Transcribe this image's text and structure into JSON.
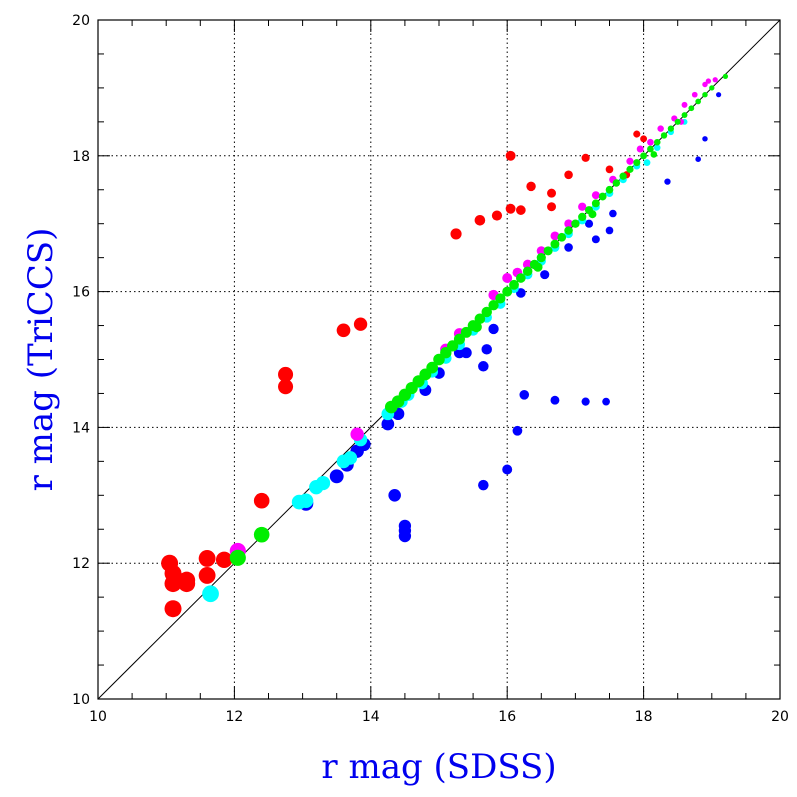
{
  "chart_data": {
    "type": "scatter",
    "title": "",
    "xlabel": "r mag (SDSS)",
    "ylabel": "r mag (TriCCS)",
    "xlim": [
      10,
      20
    ],
    "ylim": [
      10,
      20
    ],
    "x_ticks": [
      "10",
      "12",
      "14",
      "16",
      "18",
      "20"
    ],
    "y_ticks": [
      "10",
      "12",
      "14",
      "16",
      "18",
      "20"
    ],
    "grid": "dotted at major ticks",
    "reference_line": "y = x",
    "axis_title_color": "#0000ee",
    "series": [
      {
        "color": "#ff0000",
        "points": [
          [
            11.05,
            12.0
          ],
          [
            11.1,
            11.85
          ],
          [
            11.1,
            11.7
          ],
          [
            11.15,
            11.75
          ],
          [
            11.1,
            11.33
          ],
          [
            11.3,
            11.75
          ],
          [
            11.3,
            11.7
          ],
          [
            11.6,
            12.07
          ],
          [
            11.6,
            11.82
          ],
          [
            11.85,
            12.05
          ],
          [
            12.4,
            12.92
          ],
          [
            12.75,
            14.78
          ],
          [
            12.75,
            14.6
          ],
          [
            13.6,
            15.43
          ],
          [
            13.85,
            15.52
          ],
          [
            15.25,
            16.85
          ],
          [
            15.6,
            17.05
          ],
          [
            15.85,
            17.12
          ],
          [
            16.05,
            17.22
          ],
          [
            16.2,
            17.2
          ],
          [
            16.05,
            18.0
          ],
          [
            16.35,
            17.55
          ],
          [
            16.65,
            17.45
          ],
          [
            16.65,
            17.25
          ],
          [
            16.9,
            17.72
          ],
          [
            17.15,
            17.97
          ],
          [
            17.5,
            17.8
          ],
          [
            17.75,
            17.72
          ],
          [
            17.9,
            18.32
          ],
          [
            18.0,
            18.25
          ]
        ]
      },
      {
        "color": "#0000ff",
        "points": [
          [
            13.05,
            12.88
          ],
          [
            13.5,
            13.28
          ],
          [
            13.65,
            13.45
          ],
          [
            13.8,
            13.65
          ],
          [
            13.9,
            13.75
          ],
          [
            14.25,
            14.05
          ],
          [
            14.35,
            13.0
          ],
          [
            14.4,
            14.2
          ],
          [
            14.5,
            12.55
          ],
          [
            14.5,
            12.48
          ],
          [
            14.5,
            12.4
          ],
          [
            14.8,
            14.55
          ],
          [
            15.0,
            14.8
          ],
          [
            15.3,
            15.1
          ],
          [
            15.4,
            15.1
          ],
          [
            15.7,
            15.15
          ],
          [
            15.65,
            14.9
          ],
          [
            15.65,
            13.15
          ],
          [
            15.8,
            15.45
          ],
          [
            16.0,
            13.38
          ],
          [
            16.15,
            13.95
          ],
          [
            16.25,
            14.48
          ],
          [
            16.2,
            15.98
          ],
          [
            16.7,
            14.4
          ],
          [
            16.55,
            16.25
          ],
          [
            16.9,
            16.65
          ],
          [
            17.15,
            14.38
          ],
          [
            17.2,
            17.0
          ],
          [
            17.3,
            16.77
          ],
          [
            17.45,
            14.38
          ],
          [
            17.5,
            16.9
          ],
          [
            17.55,
            17.15
          ],
          [
            18.35,
            17.62
          ],
          [
            18.8,
            17.95
          ],
          [
            18.9,
            18.25
          ],
          [
            19.1,
            18.9
          ]
        ]
      },
      {
        "color": "#00ffff",
        "points": [
          [
            11.65,
            11.55
          ],
          [
            12.95,
            12.9
          ],
          [
            13.05,
            12.92
          ],
          [
            13.2,
            13.12
          ],
          [
            13.3,
            13.18
          ],
          [
            13.6,
            13.5
          ],
          [
            13.7,
            13.55
          ],
          [
            13.85,
            13.82
          ],
          [
            14.25,
            14.2
          ],
          [
            14.45,
            14.38
          ],
          [
            14.55,
            14.48
          ],
          [
            14.75,
            14.65
          ],
          [
            14.9,
            14.82
          ],
          [
            15.1,
            15.02
          ],
          [
            15.3,
            15.22
          ],
          [
            15.5,
            15.43
          ],
          [
            15.7,
            15.62
          ],
          [
            15.9,
            15.82
          ],
          [
            16.1,
            16.05
          ],
          [
            16.3,
            16.25
          ],
          [
            16.5,
            16.45
          ],
          [
            16.7,
            16.65
          ],
          [
            16.9,
            16.85
          ],
          [
            17.1,
            17.05
          ],
          [
            17.3,
            17.25
          ],
          [
            17.5,
            17.45
          ],
          [
            17.7,
            17.65
          ],
          [
            17.9,
            17.85
          ],
          [
            18.05,
            17.9
          ],
          [
            18.2,
            18.12
          ],
          [
            18.4,
            18.35
          ],
          [
            18.6,
            18.5
          ]
        ]
      },
      {
        "color": "#ff00ff",
        "points": [
          [
            12.05,
            12.18
          ],
          [
            13.8,
            13.9
          ],
          [
            15.1,
            15.15
          ],
          [
            15.3,
            15.38
          ],
          [
            15.8,
            15.95
          ],
          [
            16.0,
            16.2
          ],
          [
            16.15,
            16.28
          ],
          [
            16.3,
            16.4
          ],
          [
            16.5,
            16.6
          ],
          [
            16.7,
            16.82
          ],
          [
            16.9,
            17.0
          ],
          [
            17.1,
            17.25
          ],
          [
            17.3,
            17.42
          ],
          [
            17.55,
            17.65
          ],
          [
            17.8,
            17.92
          ],
          [
            17.95,
            18.1
          ],
          [
            18.1,
            18.2
          ],
          [
            18.25,
            18.4
          ],
          [
            18.45,
            18.55
          ],
          [
            18.6,
            18.75
          ],
          [
            18.75,
            18.9
          ],
          [
            18.9,
            19.05
          ],
          [
            18.95,
            19.1
          ],
          [
            19.05,
            19.12
          ],
          [
            18.55,
            18.5
          ]
        ]
      },
      {
        "color": "#00ee00",
        "points": [
          [
            12.05,
            12.08
          ],
          [
            12.4,
            12.42
          ],
          [
            14.3,
            14.3
          ],
          [
            14.4,
            14.38
          ],
          [
            14.5,
            14.48
          ],
          [
            14.6,
            14.58
          ],
          [
            14.7,
            14.68
          ],
          [
            14.8,
            14.78
          ],
          [
            14.9,
            14.88
          ],
          [
            15.0,
            15.0
          ],
          [
            15.1,
            15.1
          ],
          [
            15.2,
            15.2
          ],
          [
            15.3,
            15.3
          ],
          [
            15.4,
            15.4
          ],
          [
            15.5,
            15.5
          ],
          [
            15.6,
            15.6
          ],
          [
            15.7,
            15.7
          ],
          [
            15.8,
            15.8
          ],
          [
            15.9,
            15.9
          ],
          [
            16.0,
            16.0
          ],
          [
            16.1,
            16.1
          ],
          [
            16.2,
            16.2
          ],
          [
            16.3,
            16.3
          ],
          [
            16.4,
            16.4
          ],
          [
            16.5,
            16.5
          ],
          [
            16.6,
            16.6
          ],
          [
            16.7,
            16.7
          ],
          [
            16.8,
            16.8
          ],
          [
            16.9,
            16.9
          ],
          [
            17.0,
            17.0
          ],
          [
            17.1,
            17.1
          ],
          [
            17.2,
            17.2
          ],
          [
            17.3,
            17.3
          ],
          [
            17.4,
            17.4
          ],
          [
            17.5,
            17.5
          ],
          [
            17.6,
            17.6
          ],
          [
            17.7,
            17.7
          ],
          [
            17.8,
            17.8
          ],
          [
            17.9,
            17.9
          ],
          [
            18.0,
            18.0
          ],
          [
            18.1,
            18.1
          ],
          [
            18.2,
            18.2
          ],
          [
            18.3,
            18.3
          ],
          [
            18.4,
            18.4
          ],
          [
            18.5,
            18.5
          ],
          [
            18.6,
            18.6
          ],
          [
            18.7,
            18.7
          ],
          [
            18.8,
            18.8
          ],
          [
            18.9,
            18.9
          ],
          [
            19.0,
            19.0
          ],
          [
            19.2,
            19.17
          ],
          [
            15.55,
            15.48
          ],
          [
            16.45,
            16.36
          ],
          [
            17.25,
            17.14
          ],
          [
            18.15,
            18.02
          ]
        ]
      }
    ]
  }
}
